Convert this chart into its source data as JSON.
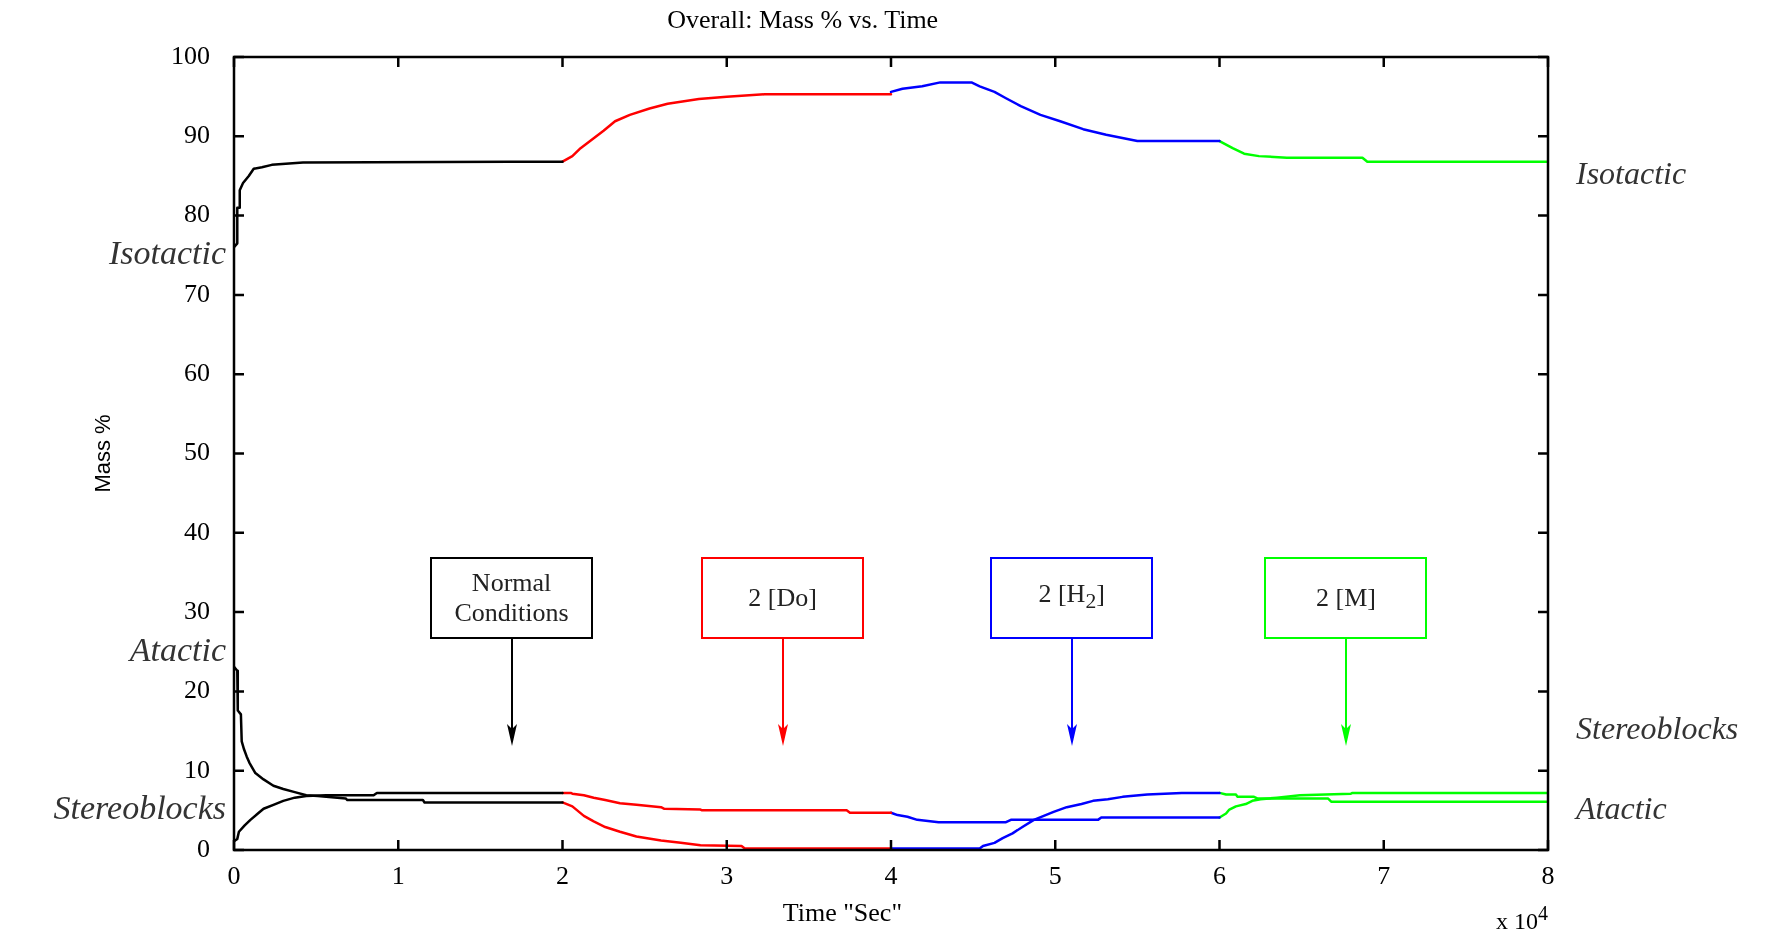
{
  "chart_data": {
    "type": "line",
    "title": "Overall: Mass % vs. Time",
    "xlabel": "Time \"Sec\"",
    "ylabel": "Mass %",
    "xlim": [
      0,
      8
    ],
    "xticks": [
      0,
      1,
      2,
      3,
      4,
      5,
      6,
      7,
      8
    ],
    "ylim": [
      0,
      100
    ],
    "yticks": [
      0,
      10,
      20,
      30,
      40,
      50,
      60,
      70,
      80,
      90,
      100
    ],
    "series": [
      {
        "name": "Isotactic",
        "color": "#000000",
        "x": [
          0,
          0.02,
          0.02,
          0.035,
          0.035,
          0.055,
          0.09,
          0.12,
          0.17,
          0.23,
          0.42,
          2
        ],
        "values": [
          76,
          76.5,
          81,
          81,
          83.2,
          84.1,
          85,
          85.9,
          86.1,
          86.4,
          86.7,
          86.8
        ]
      },
      {
        "name": "Atactic",
        "color": "#000000",
        "x": [
          0,
          0.02,
          0.023,
          0.042,
          0.047,
          0.061,
          0.077,
          0.094,
          0.13,
          0.18,
          0.24,
          0.3,
          0.37,
          0.44,
          0.51,
          0.68,
          0.69,
          1.15,
          1.16,
          2
        ],
        "values": [
          23.1,
          22.6,
          17.6,
          17.1,
          13.7,
          12.7,
          11.8,
          11,
          9.7,
          8.9,
          8.1,
          7.7,
          7.3,
          6.9,
          6.8,
          6.5,
          6.3,
          6.3,
          6,
          6
        ]
      },
      {
        "name": "Stereoblocks",
        "color": "#000000",
        "x": [
          0,
          0.02,
          0.03,
          0.065,
          0.1,
          0.14,
          0.18,
          0.24,
          0.3,
          0.37,
          0.44,
          0.56,
          0.85,
          0.87,
          2
        ],
        "values": [
          1.1,
          1.4,
          2.3,
          3.1,
          3.8,
          4.5,
          5.2,
          5.7,
          6.2,
          6.6,
          6.8,
          6.9,
          6.9,
          7.2,
          7.2
        ]
      },
      {
        "color": "#ff0000",
        "x": [
          2,
          2.06,
          2.11,
          2.18,
          2.25,
          2.32,
          2.41,
          2.53,
          2.64,
          2.83,
          3,
          3.23,
          4
        ],
        "values": [
          86.8,
          87.5,
          88.5,
          89.6,
          90.7,
          91.9,
          92.7,
          93.5,
          94.1,
          94.7,
          95,
          95.3,
          95.3
        ]
      },
      {
        "color": "#ff0000",
        "x": [
          2,
          2.06,
          2.13,
          2.19,
          2.26,
          2.35,
          2.45,
          2.6,
          2.72,
          2.84,
          3.09,
          3.11,
          4
        ],
        "values": [
          6,
          5.5,
          4.3,
          3.6,
          2.9,
          2.3,
          1.7,
          1.2,
          0.9,
          0.6,
          0.5,
          0.2,
          0.2
        ]
      },
      {
        "color": "#ff0000",
        "x": [
          2,
          2.05,
          2.06,
          2.13,
          2.19,
          2.26,
          2.35,
          2.45,
          2.6,
          2.62,
          2.84,
          2.85,
          3.73,
          3.75,
          4
        ],
        "values": [
          7.2,
          7.2,
          7.1,
          6.9,
          6.6,
          6.3,
          5.9,
          5.7,
          5.4,
          5.2,
          5.1,
          5,
          5,
          4.7,
          4.7
        ]
      },
      {
        "color": "#0000ff",
        "x": [
          4,
          4.07,
          4.19,
          4.3,
          4.49,
          4.54,
          4.63,
          4.7,
          4.79,
          4.91,
          5.03,
          5.17,
          5.31,
          5.5,
          6
        ],
        "values": [
          95.6,
          96,
          96.3,
          96.8,
          96.8,
          96.3,
          95.6,
          94.8,
          93.8,
          92.7,
          91.9,
          90.9,
          90.2,
          89.4,
          89.4
        ]
      },
      {
        "color": "#0000ff",
        "x": [
          4,
          4.54,
          4.56,
          4.63,
          4.68,
          4.74,
          4.8,
          4.87,
          4.93,
          4.99,
          5.07,
          5.16,
          5.23,
          5.32,
          5.41,
          5.56,
          5.77,
          6
        ],
        "values": [
          0.2,
          0.2,
          0.5,
          0.9,
          1.5,
          2.1,
          2.9,
          3.8,
          4.3,
          4.8,
          5.4,
          5.8,
          6.2,
          6.4,
          6.7,
          7,
          7.2,
          7.2
        ]
      },
      {
        "color": "#0000ff",
        "x": [
          4,
          4.04,
          4.1,
          4.16,
          4.29,
          4.7,
          4.73,
          5.26,
          5.28,
          6
        ],
        "values": [
          4.7,
          4.4,
          4.2,
          3.8,
          3.5,
          3.5,
          3.8,
          3.8,
          4.1,
          4.1
        ]
      },
      {
        "name": "Isotactic",
        "color": "#00ff00",
        "x": [
          6,
          6.08,
          6.15,
          6.24,
          6.41,
          6.87,
          6.9,
          8
        ],
        "values": [
          89.4,
          88.5,
          87.8,
          87.5,
          87.3,
          87.3,
          86.8,
          86.8
        ]
      },
      {
        "name": "Atactic",
        "color": "#00ff00",
        "x": [
          6,
          6.04,
          6.1,
          6.11,
          6.21,
          6.23,
          6.66,
          6.68,
          8
        ],
        "values": [
          7.2,
          7,
          7,
          6.7,
          6.7,
          6.5,
          6.5,
          6.1,
          6.1
        ]
      },
      {
        "name": "Stereoblocks",
        "color": "#00ff00",
        "x": [
          6,
          6.04,
          6.06,
          6.1,
          6.16,
          6.2,
          6.25,
          6.35,
          6.49,
          6.8,
          6.81,
          8
        ],
        "values": [
          4.1,
          4.6,
          5.1,
          5.5,
          5.8,
          6.2,
          6.4,
          6.6,
          6.9,
          7.1,
          7.2,
          7.2
        ]
      }
    ],
    "annotations": [
      "Normal Conditions",
      "2 [Do]",
      "2 [H$_{2}$]",
      "2 [M]",
      "x 10$^{4}$"
    ]
  }
}
